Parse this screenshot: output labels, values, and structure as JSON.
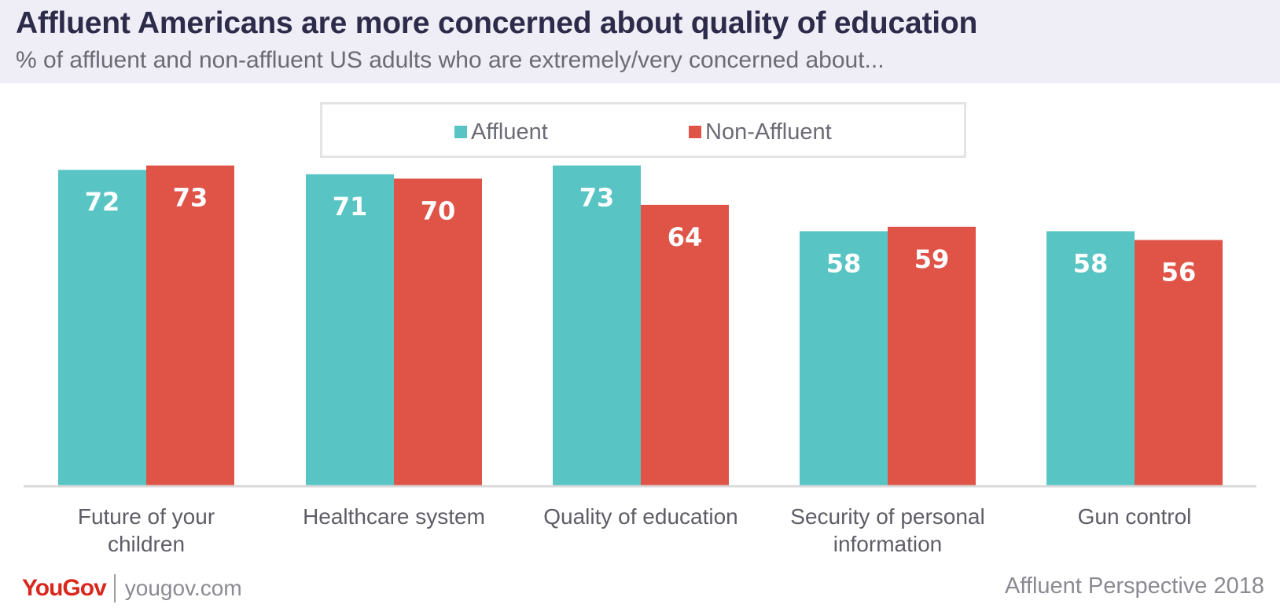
{
  "header": {
    "title": "Affluent Americans are more concerned about quality of education",
    "subtitle": "% of affluent and non-affluent US adults who are extremely/very concerned about..."
  },
  "chart_data": {
    "type": "bar",
    "title": "Affluent Americans are more concerned about quality of education",
    "subtitle": "% of affluent and non-affluent US adults who are extremely/very concerned about...",
    "categories": [
      [
        "Future of your",
        "children"
      ],
      [
        "Healthcare system"
      ],
      [
        "Quality of education"
      ],
      [
        "Security of personal",
        "information"
      ],
      [
        "Gun control"
      ]
    ],
    "series": [
      {
        "name": "Affluent",
        "color": "#59c4c4",
        "values": [
          72,
          71,
          73,
          58,
          58
        ]
      },
      {
        "name": "Non-Affluent",
        "color": "#e05448",
        "values": [
          73,
          70,
          64,
          59,
          56
        ]
      }
    ],
    "legend_position": "top-center",
    "ylim": [
      0,
      100
    ],
    "grid": false,
    "xlabel": "",
    "ylabel": ""
  },
  "footer": {
    "logo": "YouGov",
    "site": "yougov.com",
    "source": "Affluent Perspective 2018"
  },
  "colors": {
    "header_bg": "#efedf5",
    "title": "#2d2b4a",
    "axis": "#d9d9d9",
    "label_text": "#5d5d66",
    "value_text": "#ffffff"
  }
}
